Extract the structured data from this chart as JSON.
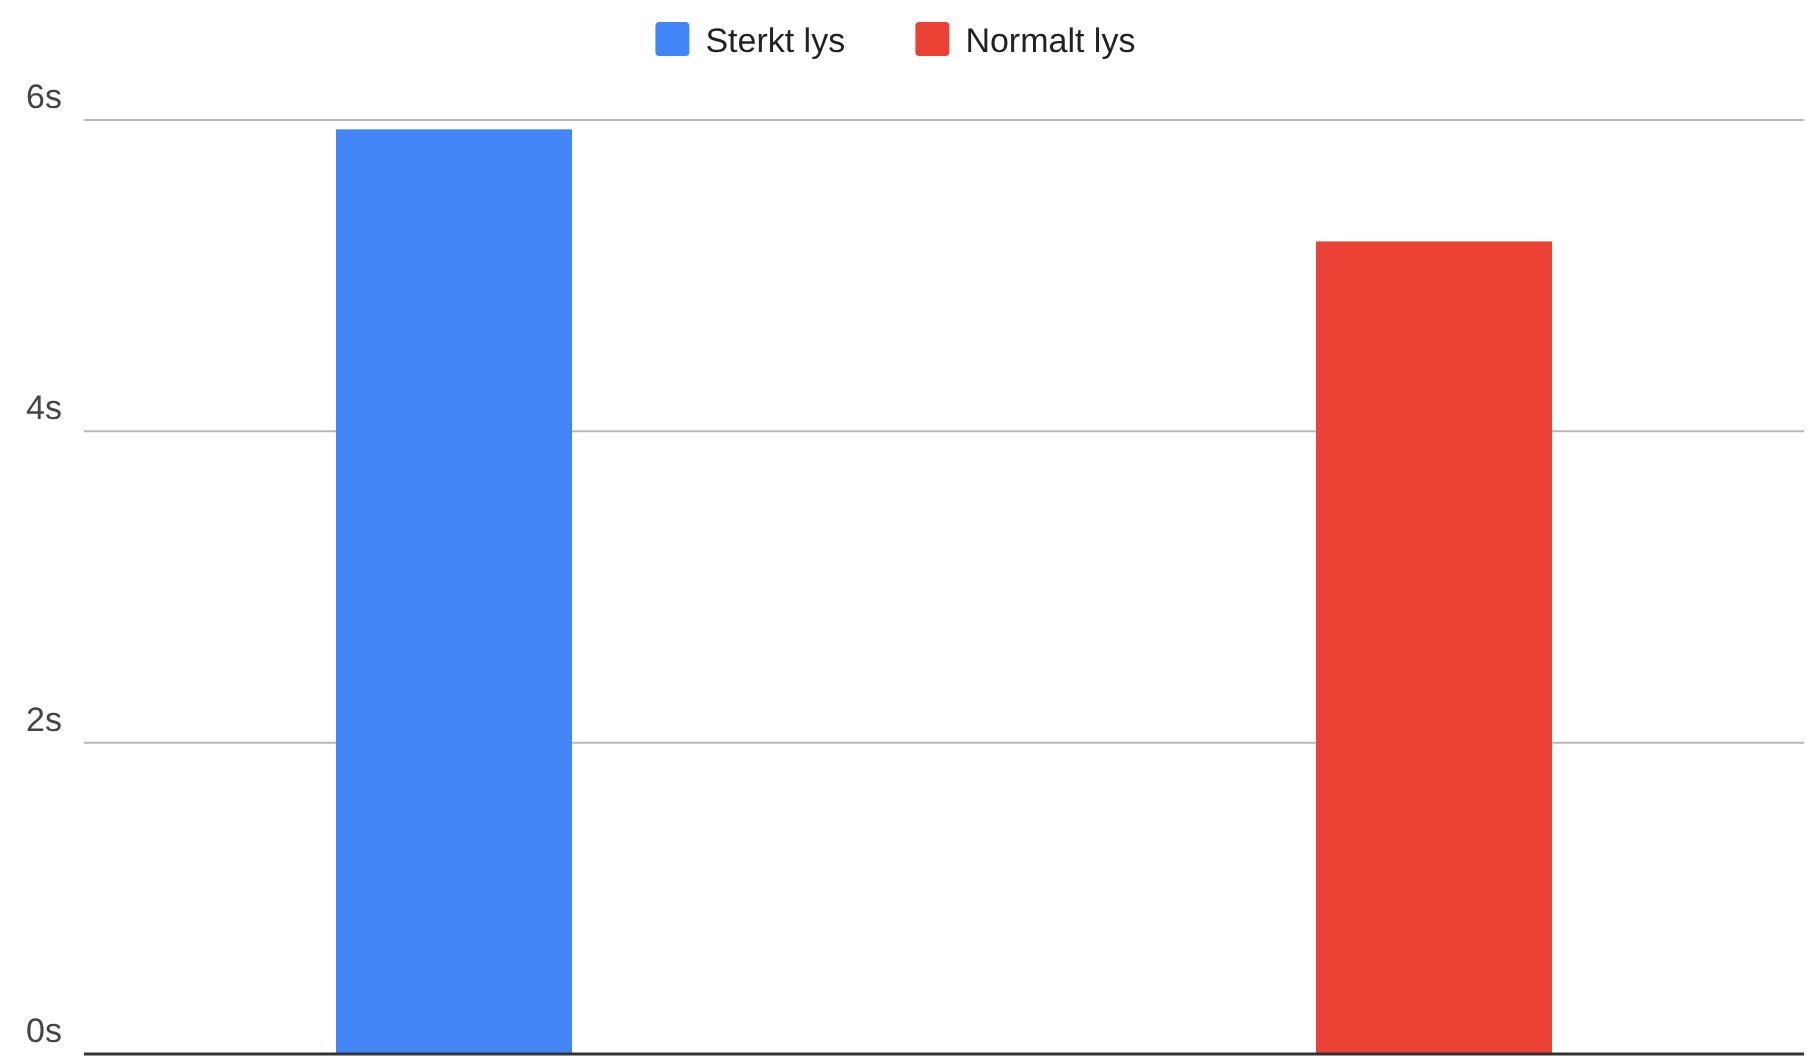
{
  "chart_data": {
    "type": "bar",
    "categories": [
      null,
      null
    ],
    "series": [
      {
        "name": "Sterkt lys",
        "color": "#4285f4",
        "values": [
          5.94,
          null
        ]
      },
      {
        "name": "Normalt lys",
        "color": "#ea4335",
        "values": [
          null,
          5.22
        ]
      }
    ],
    "ylim": [
      0,
      6
    ],
    "yticks": [
      {
        "value": 0,
        "label": "0s"
      },
      {
        "value": 2,
        "label": "2s"
      },
      {
        "value": 4,
        "label": "4s"
      },
      {
        "value": 6,
        "label": "6s"
      }
    ],
    "grid": "y",
    "legend": "top"
  }
}
